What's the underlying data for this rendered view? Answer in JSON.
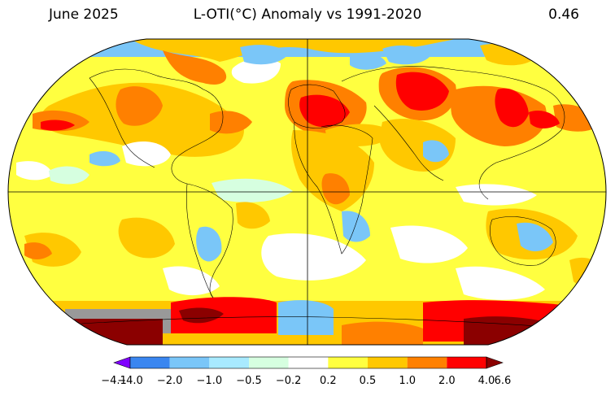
{
  "header": {
    "date": "June 2025",
    "title": "L-OTI(°C) Anomaly vs 1991-2020",
    "global_mean": "0.46"
  },
  "legend": {
    "ticks": [
      "−4.1",
      "−4.0",
      "−2.0",
      "−1.0",
      "−0.5",
      "−0.2",
      "0.2",
      "0.5",
      "1.0",
      "2.0",
      "4.0",
      "6.6"
    ],
    "colors": [
      "#8000ff",
      "#3a86f0",
      "#7ac6f8",
      "#a8eaff",
      "#d6ffe0",
      "#ffffff",
      "#ffff40",
      "#ffc800",
      "#ff8000",
      "#ff0000",
      "#8b0000"
    ],
    "missing_color": "#999999"
  }
}
